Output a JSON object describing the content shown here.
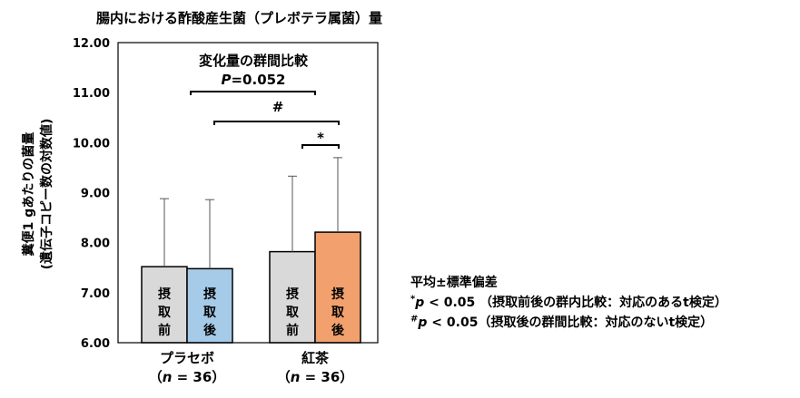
{
  "chart_data": {
    "type": "bar",
    "title": "腸内における酢酸産生菌（プレボテラ属菌）量",
    "ylabel_line1": "糞便1 gあたりの菌量",
    "ylabel_line2": "(遺伝子コピー数の対数値)",
    "ylim": [
      6.0,
      12.0
    ],
    "yticks": [
      "6.00",
      "7.00",
      "8.00",
      "9.00",
      "10.00",
      "11.00",
      "12.00"
    ],
    "groups": [
      {
        "name": "プラセボ",
        "n_prefix": "（",
        "n_var": "n",
        "n_rest": " = 36）"
      },
      {
        "name": "紅茶",
        "n_prefix": "（",
        "n_var": "n",
        "n_rest": " = 36）"
      }
    ],
    "series": [
      {
        "name": "摂取前",
        "label_chars": [
          "摂",
          "取",
          "前"
        ],
        "color_placebo": "#d9d9d9",
        "color_tea": "#d9d9d9",
        "values": [
          7.52,
          7.82
        ],
        "sd_upper": [
          8.88,
          9.33
        ]
      },
      {
        "name": "摂取後",
        "label_chars": [
          "摂",
          "取",
          "後"
        ],
        "color_placebo": "#a6cbe8",
        "color_tea": "#f2a16e",
        "values": [
          7.48,
          8.21
        ],
        "sd_upper": [
          8.86,
          9.7
        ]
      }
    ],
    "annotations": {
      "heading": "変化量の群間比較",
      "pvalue_italic": "P",
      "pvalue_rest": "=0.052",
      "hash": "#",
      "star": "*"
    }
  },
  "legend_notes": {
    "line1": "平均±標準偏差",
    "line2_sup": "*",
    "line2_p": "p",
    "line2_rest": " < 0.05 （摂取前後の群内比較：対応のあるt検定）",
    "line3_sup": "#",
    "line3_p": "p",
    "line3_rest": " < 0.05（摂取後の群間比較：対応のないt検定）"
  },
  "colors": {
    "placebo_before": "#d9d9d9",
    "placebo_after": "#a6cbe8",
    "tea_before": "#d9d9d9",
    "tea_after": "#f2a16e",
    "axis": "#000000"
  }
}
